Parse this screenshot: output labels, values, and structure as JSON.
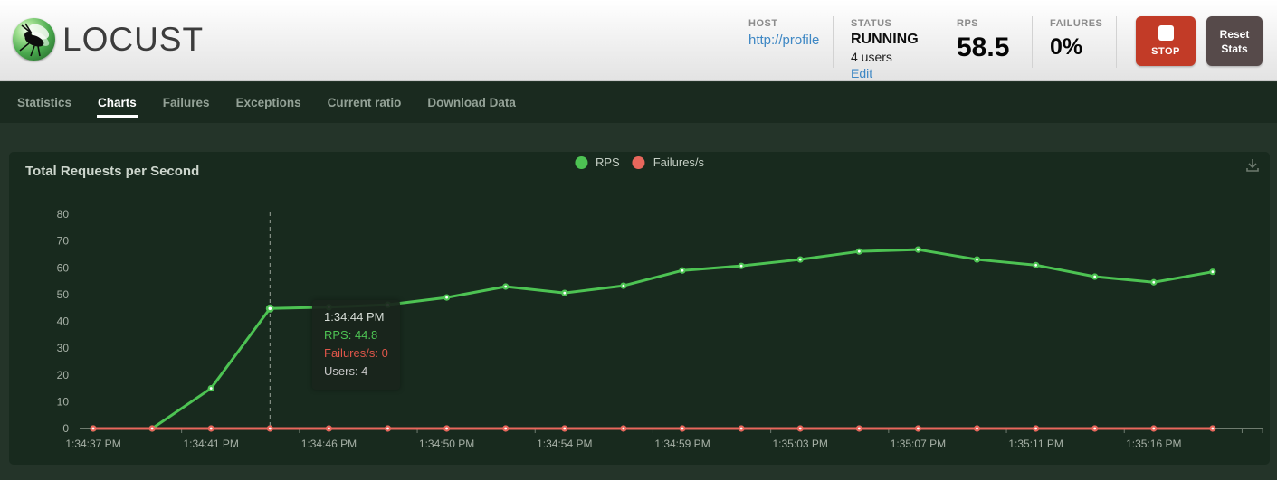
{
  "header": {
    "logo_text": "LOCUST",
    "host": {
      "label": "HOST",
      "value": "http://profile"
    },
    "status": {
      "label": "STATUS",
      "value": "RUNNING",
      "users": "4 users",
      "edit_link": "Edit"
    },
    "rps": {
      "label": "RPS",
      "value": "58.5"
    },
    "failures": {
      "label": "FAILURES",
      "value": "0%"
    },
    "stop_button_label": "STOP",
    "reset_button_label": "Reset Stats"
  },
  "nav": {
    "tabs": [
      {
        "label": "Statistics",
        "active": false
      },
      {
        "label": "Charts",
        "active": true
      },
      {
        "label": "Failures",
        "active": false
      },
      {
        "label": "Exceptions",
        "active": false
      },
      {
        "label": "Current ratio",
        "active": false
      },
      {
        "label": "Download Data",
        "active": false
      }
    ]
  },
  "chart": {
    "title": "Total Requests per Second",
    "tooltip": {
      "time": "1:34:44 PM",
      "rps_line": "RPS: 44.8",
      "failures_line": "Failures/s: 0",
      "users_line": "Users: 4"
    }
  },
  "chart_data": {
    "type": "line",
    "title": "Total Requests per Second",
    "x": [
      "1:34:37 PM",
      "1:34:39 PM",
      "1:34:41 PM",
      "1:34:44 PM",
      "1:34:46 PM",
      "1:34:48 PM",
      "1:34:50 PM",
      "1:34:52 PM",
      "1:34:54 PM",
      "1:34:57 PM",
      "1:34:59 PM",
      "1:35:01 PM",
      "1:35:03 PM",
      "1:35:05 PM",
      "1:35:07 PM",
      "1:35:09 PM",
      "1:35:11 PM",
      "1:35:13 PM",
      "1:35:16 PM",
      "1:35:18 PM"
    ],
    "series": [
      {
        "name": "RPS",
        "color": "#4dc353",
        "values": [
          0,
          0,
          15,
          44.8,
          45.3,
          46.2,
          48.9,
          53.0,
          50.6,
          53.3,
          59.0,
          60.7,
          63.1,
          66.1,
          66.8,
          63.1,
          61.0,
          56.7,
          54.6,
          58.5
        ]
      },
      {
        "name": "Failures/s",
        "color": "#e8675c",
        "values": [
          0,
          0,
          0,
          0,
          0,
          0,
          0,
          0,
          0,
          0,
          0,
          0,
          0,
          0,
          0,
          0,
          0,
          0,
          0,
          0
        ]
      }
    ],
    "ylim": [
      0,
      80
    ],
    "yticks": [
      0,
      10,
      20,
      30,
      40,
      50,
      60,
      70,
      80
    ],
    "xtick_indices": [
      0,
      2,
      4,
      6,
      8,
      10,
      12,
      14,
      16,
      18
    ],
    "grid": false,
    "legend_position": "top-center",
    "tooltip_point": {
      "index": 3,
      "time": "1:34:44 PM",
      "rps": 44.8,
      "failures": 0,
      "users": 4
    }
  },
  "colors": {
    "rps_green": "#4dc353",
    "failures_red": "#e8675c",
    "stop_red": "#c23b27",
    "reset_gray": "#564a4a",
    "link_blue": "#3d87c4",
    "panel_bg": "#182a1e",
    "page_bg": "#243429",
    "nav_bg": "#1a2a1f"
  }
}
